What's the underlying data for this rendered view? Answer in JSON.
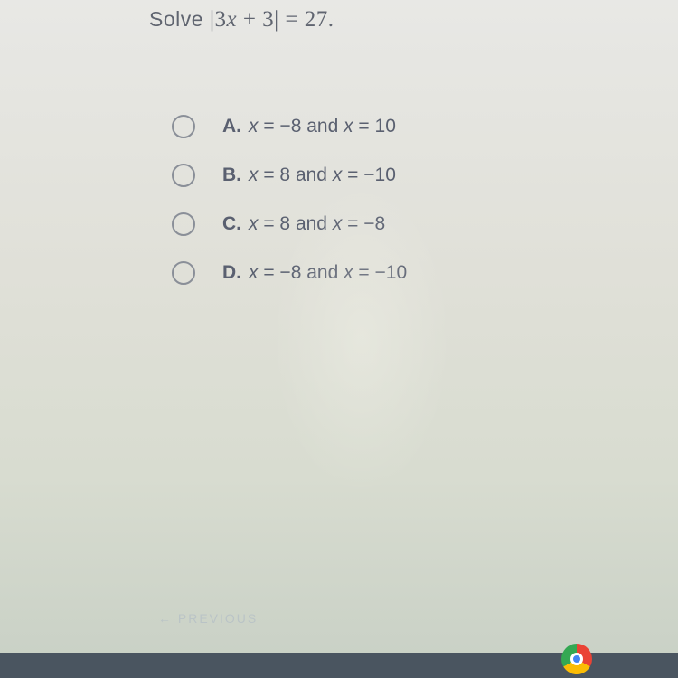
{
  "question": {
    "prefix": "Solve ",
    "equation_left_bar": "|",
    "equation_expr": "3x + 3",
    "equation_right_bar": "|",
    "equals": " = 27."
  },
  "options": [
    {
      "letter": "A.",
      "text_parts": [
        "x",
        " = −8 and ",
        "x",
        " = 10"
      ]
    },
    {
      "letter": "B.",
      "text_parts": [
        "x",
        " = 8 and ",
        "x",
        " = −10"
      ]
    },
    {
      "letter": "C.",
      "text_parts": [
        "x",
        " = 8 and ",
        "x",
        " = −8"
      ]
    },
    {
      "letter": "D.",
      "text_parts": [
        "x",
        " = −8 and ",
        "x",
        " = −10"
      ]
    }
  ],
  "prev_label": "← PREVIOUS",
  "colors": {
    "text": "#5a6070",
    "radio_border": "#8a8f98",
    "divider": "#c0c5cc",
    "bottom_bar": "#4a5560"
  }
}
